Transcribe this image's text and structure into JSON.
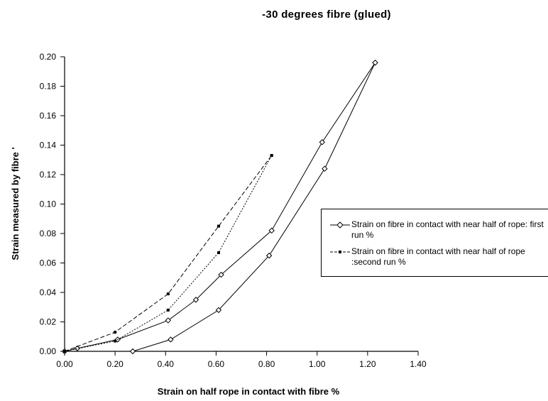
{
  "chart_data": {
    "type": "line",
    "title": "-30 degrees fibre (glued)",
    "xlabel": "Strain on half rope in contact with fibre %",
    "ylabel": "Strain measured by fibre '",
    "xlim": [
      0.0,
      1.4
    ],
    "ylim": [
      0.0,
      0.2
    ],
    "xticks": [
      "0.00",
      "0.20",
      "0.40",
      "0.60",
      "0.80",
      "1.00",
      "1.20",
      "1.40"
    ],
    "yticks": [
      "0.00",
      "0.02",
      "0.04",
      "0.06",
      "0.08",
      "0.10",
      "0.12",
      "0.14",
      "0.16",
      "0.18",
      "0.20"
    ],
    "grid": false,
    "legend_position": "right",
    "series": [
      {
        "name": "Strain on fibre in contact with near half of rope: first run %",
        "marker": "diamond-open",
        "line_style": "solid",
        "color": "#000000",
        "lines": [
          {
            "x": [
              0.0,
              0.05,
              0.21,
              0.41,
              0.52,
              0.62,
              0.82,
              1.02,
              1.23
            ],
            "y": [
              0.0,
              0.002,
              0.008,
              0.021,
              0.035,
              0.052,
              0.082,
              0.142,
              0.196
            ]
          },
          {
            "x": [
              0.27,
              0.42,
              0.61,
              0.81,
              1.03,
              1.23
            ],
            "y": [
              0.0,
              0.008,
              0.028,
              0.065,
              0.124,
              0.196
            ]
          }
        ]
      },
      {
        "name": "Strain on fibre in contact with near half of rope :second run %",
        "marker": "star",
        "line_style": "dashed",
        "color": "#000000",
        "lines": [
          {
            "x": [
              0.0,
              0.2,
              0.41,
              0.61,
              0.82
            ],
            "y": [
              0.0,
              0.013,
              0.039,
              0.085,
              0.133
            ]
          },
          {
            "x": [
              0.0,
              0.2,
              0.41,
              0.61,
              0.82
            ],
            "y": [
              0.0,
              0.007,
              0.028,
              0.067,
              0.133
            ]
          }
        ]
      }
    ]
  }
}
